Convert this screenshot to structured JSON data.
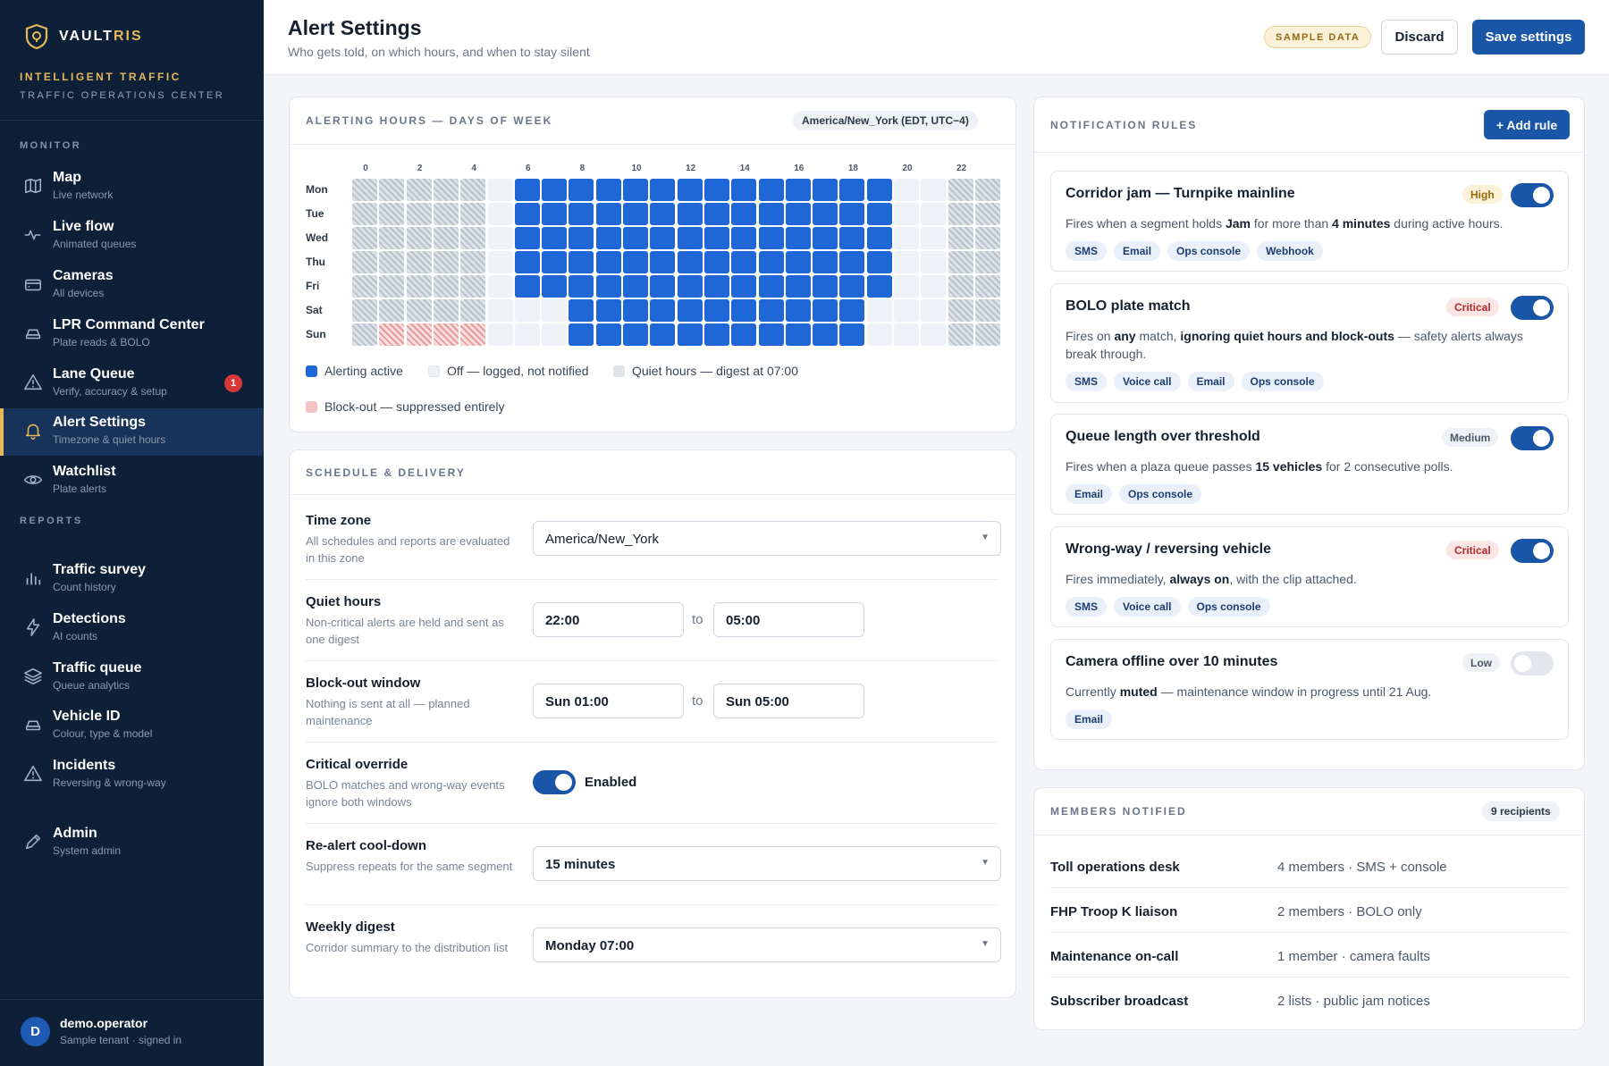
{
  "brand": {
    "name_a": "VAULT",
    "name_b": "RIS",
    "tenant_line1": "INTELLIGENT TRAFFIC",
    "tenant_line2": "TRAFFIC OPERATIONS CENTER",
    "accent": "#e7b85a"
  },
  "sidebar": {
    "sections": {
      "monitor": "MONITOR",
      "reports": "REPORTS"
    },
    "items": [
      {
        "title": "Map",
        "sub": "Live network",
        "icon": "map-icon"
      },
      {
        "title": "Live flow",
        "sub": "Animated queues",
        "icon": "pulse-icon"
      },
      {
        "title": "Cameras",
        "sub": "All devices",
        "icon": "camera-icon"
      },
      {
        "title": "LPR Command Center",
        "sub": "Plate reads & BOLO",
        "icon": "car-icon"
      },
      {
        "title": "Lane Queue",
        "sub": "Verify, accuracy & setup",
        "icon": "warning-icon",
        "badge": "1"
      },
      {
        "title": "Alert Settings",
        "sub": "Timezone & quiet hours",
        "icon": "bell-icon",
        "active": true
      },
      {
        "title": "Watchlist",
        "sub": "Plate alerts",
        "icon": "eye-icon"
      },
      {
        "title": "Traffic survey",
        "sub": "Count history",
        "icon": "bar-chart-icon"
      },
      {
        "title": "Detections",
        "sub": "AI counts",
        "icon": "lightning-icon"
      },
      {
        "title": "Traffic queue",
        "sub": "Queue analytics",
        "icon": "layers-icon"
      },
      {
        "title": "Vehicle ID",
        "sub": "Colour, type & model",
        "icon": "car-icon"
      },
      {
        "title": "Incidents",
        "sub": "Reversing & wrong-way",
        "icon": "warning-icon"
      },
      {
        "title": "Admin",
        "sub": "System admin",
        "icon": "pen-icon"
      }
    ],
    "user": {
      "initial": "D",
      "name": "demo.operator",
      "sub": "Sample tenant · signed in"
    }
  },
  "header": {
    "title": "Alert Settings",
    "subtitle": "Who gets told, on which hours, and when to stay silent",
    "badge": "SAMPLE DATA",
    "discard_label": "Discard",
    "save_label": "Save settings"
  },
  "hours_card": {
    "label": "ALERTING HOURS — DAYS OF WEEK",
    "timezone_pill": "America/New_York (EDT, UTC−4)",
    "hour_labels": [
      "0",
      "2",
      "4",
      "6",
      "8",
      "10",
      "12",
      "14",
      "16",
      "18",
      "20",
      "22"
    ],
    "days": [
      "Mon",
      "Tue",
      "Wed",
      "Thu",
      "Fri",
      "Sat",
      "Sun"
    ],
    "grid": [
      "qqqqqoaaaaaaaaaaaaaaooqq",
      "qqqqqoaaaaaaaaaaaaaaooqq",
      "qqqqqoaaaaaaaaaaaaaaooqq",
      "qqqqqoaaaaaaaaaaaaaaooqq",
      "qqqqqoaaaaaaaaaaaaaaooqq",
      "qqqqqoooaaaaaaaaaaaoooqq",
      "qbbbboooaaaaaaaaaaaoooqq"
    ],
    "legend": {
      "active": "Alerting active",
      "off": "Off — logged, not notified",
      "quiet": "Quiet hours — digest at 07:00",
      "block": "Block-out — suppressed entirely"
    },
    "colors": {
      "active": "#1f66d6",
      "off": "#eef2f7",
      "quiet": "#c3cad4",
      "block": "#f3bcbc"
    }
  },
  "schedule": {
    "label": "SCHEDULE & DELIVERY",
    "timezone": {
      "title": "Time zone",
      "desc": "All schedules and reports are evaluated in this zone",
      "value": "America/New_York"
    },
    "quiet": {
      "title": "Quiet hours",
      "desc": "Non-critical alerts are held and sent as one digest",
      "from": "22:00",
      "to_label": "to",
      "to": "05:00"
    },
    "blockout": {
      "title": "Block-out window",
      "desc": "Nothing is sent at all — planned maintenance",
      "from": "Sun 01:00",
      "to_label": "to",
      "to": "Sun 05:00"
    },
    "override": {
      "title": "Critical override",
      "desc": "BOLO matches and wrong-way events ignore both windows",
      "state": "Enabled"
    },
    "cooldown": {
      "title": "Re-alert cool-down",
      "desc": "Suppress repeats for the same segment",
      "value": "15 minutes"
    },
    "digest": {
      "title": "Weekly digest",
      "desc": "Corridor summary to the distribution list",
      "value": "Monday 07:00"
    }
  },
  "rules_card": {
    "label": "NOTIFICATION RULES",
    "add_label": "+ Add rule",
    "rules": [
      {
        "title": "Corridor jam — Turnpike mainline",
        "severity": "High",
        "enabled": true,
        "desc": [
          {
            "t": "Fires when a segment holds "
          },
          {
            "t": "Jam",
            "b": true
          },
          {
            "t": " for more than "
          },
          {
            "t": "4 minutes",
            "b": true
          },
          {
            "t": " during active hours."
          }
        ],
        "channels": [
          "SMS",
          "Email",
          "Ops console",
          "Webhook"
        ]
      },
      {
        "title": "BOLO plate match",
        "severity": "Critical",
        "enabled": true,
        "desc": [
          {
            "t": "Fires on "
          },
          {
            "t": "any",
            "b": true
          },
          {
            "t": " match, "
          },
          {
            "t": "ignoring quiet hours and block-outs",
            "b": true
          },
          {
            "t": " — safety alerts always break through."
          }
        ],
        "channels": [
          "SMS",
          "Voice call",
          "Email",
          "Ops console"
        ]
      },
      {
        "title": "Queue length over threshold",
        "severity": "Medium",
        "enabled": true,
        "desc": [
          {
            "t": "Fires when a plaza queue passes "
          },
          {
            "t": "15 vehicles",
            "b": true
          },
          {
            "t": " for 2 consecutive polls."
          }
        ],
        "channels": [
          "Email",
          "Ops console"
        ]
      },
      {
        "title": "Wrong-way / reversing vehicle",
        "severity": "Critical",
        "enabled": true,
        "desc": [
          {
            "t": "Fires immediately, "
          },
          {
            "t": "always on",
            "b": true
          },
          {
            "t": ", with the clip attached."
          }
        ],
        "channels": [
          "SMS",
          "Voice call",
          "Ops console"
        ]
      },
      {
        "title": "Camera offline over 10 minutes",
        "severity": "Low",
        "enabled": false,
        "desc": [
          {
            "t": "Currently "
          },
          {
            "t": "muted",
            "b": true
          },
          {
            "t": " — maintenance window in progress until 21 Aug."
          }
        ],
        "channels": [
          "Email"
        ]
      }
    ]
  },
  "members_card": {
    "label": "MEMBERS NOTIFIED",
    "count_pill": "9 recipients",
    "rows": [
      {
        "name": "Toll operations desk",
        "detail": "4 members · SMS + console"
      },
      {
        "name": "FHP Troop K liaison",
        "detail": "2 members · BOLO only"
      },
      {
        "name": "Maintenance on-call",
        "detail": "1 member · camera faults"
      },
      {
        "name": "Subscriber broadcast",
        "detail": "2 lists · public jam notices"
      }
    ]
  }
}
